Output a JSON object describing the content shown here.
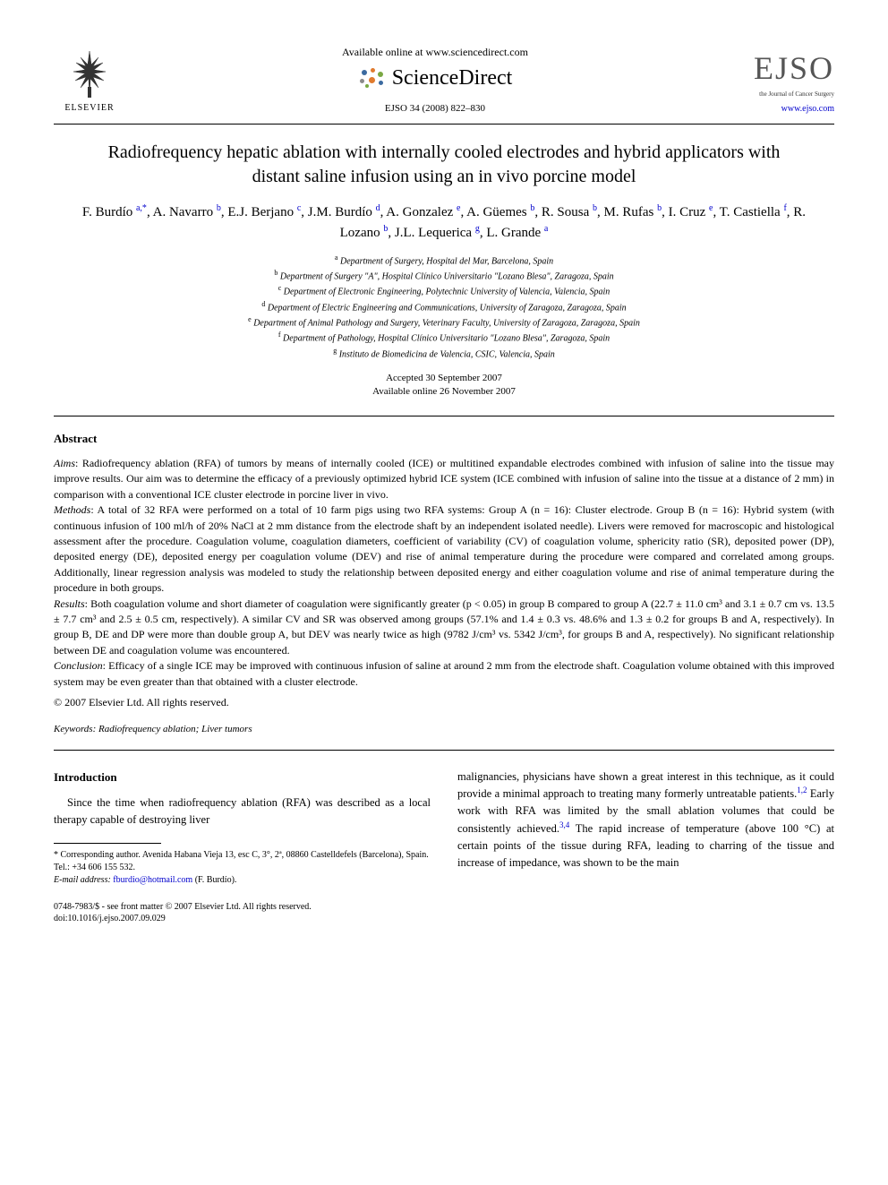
{
  "header": {
    "elsevier_label": "ELSEVIER",
    "available_text": "Available online at www.sciencedirect.com",
    "sciencedirect_label": "ScienceDirect",
    "citation": "EJSO 34 (2008) 822–830",
    "ejso_label": "EJSO",
    "ejso_subtitle": "the Journal of Cancer Surgery",
    "ejso_url": "www.ejso.com",
    "sd_dot_colors": {
      "blue": "#3b6aa0",
      "orange": "#e07b2e",
      "green": "#7aa843",
      "grey": "#8a8a8a"
    }
  },
  "article": {
    "title": "Radiofrequency hepatic ablation with internally cooled electrodes and hybrid applicators with distant saline infusion using an in vivo porcine model",
    "authors_html": "F. Burdío <sup>a,*</sup>, A. Navarro <sup>b</sup>, E.J. Berjano <sup>c</sup>, J.M. Burdío <sup>d</sup>, A. Gonzalez <sup>e</sup>, A. Güemes <sup>b</sup>, R. Sousa <sup>b</sup>, M. Rufas <sup>b</sup>, I. Cruz <sup>e</sup>, T. Castiella <sup>f</sup>, R. Lozano <sup>b</sup>, J.L. Lequerica <sup>g</sup>, L. Grande <sup>a</sup>",
    "affiliations": [
      "Department of Surgery, Hospital del Mar, Barcelona, Spain",
      "Department of Surgery \"A\", Hospital Clínico Universitario \"Lozano Blesa\", Zaragoza, Spain",
      "Department of Electronic Engineering, Polytechnic University of Valencia, Valencia, Spain",
      "Department of Electric Engineering and Communications, University of Zaragoza, Zaragoza, Spain",
      "Department of Animal Pathology and Surgery, Veterinary Faculty, University of Zaragoza, Zaragoza, Spain",
      "Department of Pathology, Hospital Clínico Universitario \"Lozano Blesa\", Zaragoza, Spain",
      "Instituto de Biomedicina de Valencia, CSIC, Valencia, Spain"
    ],
    "affiliation_markers": [
      "a",
      "b",
      "c",
      "d",
      "e",
      "f",
      "g"
    ],
    "accepted": "Accepted 30 September 2007",
    "available_online": "Available online 26 November 2007"
  },
  "abstract": {
    "heading": "Abstract",
    "aims_label": "Aims",
    "aims_text": ": Radiofrequency ablation (RFA) of tumors by means of internally cooled (ICE) or multitined expandable electrodes combined with infusion of saline into the tissue may improve results. Our aim was to determine the efficacy of a previously optimized hybrid ICE system (ICE combined with infusion of saline into the tissue at a distance of 2 mm) in comparison with a conventional ICE cluster electrode in porcine liver in vivo.",
    "methods_label": "Methods",
    "methods_text": ": A total of 32 RFA were performed on a total of 10 farm pigs using two RFA systems: Group A (n = 16): Cluster electrode. Group B (n = 16): Hybrid system (with continuous infusion of 100 ml/h of 20% NaCl at 2 mm distance from the electrode shaft by an independent isolated needle). Livers were removed for macroscopic and histological assessment after the procedure. Coagulation volume, coagulation diameters, coefficient of variability (CV) of coagulation volume, sphericity ratio (SR), deposited power (DP), deposited energy (DE), deposited energy per coagulation volume (DEV) and rise of animal temperature during the procedure were compared and correlated among groups. Additionally, linear regression analysis was modeled to study the relationship between deposited energy and either coagulation volume and rise of animal temperature during the procedure in both groups.",
    "results_label": "Results",
    "results_text": ": Both coagulation volume and short diameter of coagulation were significantly greater (p < 0.05) in group B compared to group A (22.7 ± 11.0 cm³ and 3.1 ± 0.7 cm vs. 13.5 ± 7.7 cm³ and 2.5 ± 0.5 cm, respectively). A similar CV and SR was observed among groups (57.1% and 1.4 ± 0.3 vs. 48.6% and 1.3 ± 0.2 for groups B and A, respectively). In group B, DE and DP were more than double group A, but DEV was nearly twice as high (9782 J/cm³ vs. 5342 J/cm³, for groups B and A, respectively). No significant relationship between DE and coagulation volume was encountered.",
    "conclusion_label": "Conclusion",
    "conclusion_text": ": Efficacy of a single ICE may be improved with continuous infusion of saline at around 2 mm from the electrode shaft. Coagulation volume obtained with this improved system may be even greater than that obtained with a cluster electrode.",
    "copyright": "© 2007 Elsevier Ltd. All rights reserved.",
    "keywords_label": "Keywords:",
    "keywords_text": " Radiofrequency ablation; Liver tumors"
  },
  "body": {
    "intro_heading": "Introduction",
    "intro_col1": "Since the time when radiofrequency ablation (RFA) was described as a local therapy capable of destroying liver",
    "intro_col2_a": "malignancies, physicians have shown a great interest in this technique, as it could provide a minimal approach to treating many formerly untreatable patients.",
    "intro_col2_ref1": "1,2",
    "intro_col2_b": " Early work with RFA was limited by the small ablation volumes that could be consistently achieved.",
    "intro_col2_ref2": "3,4",
    "intro_col2_c": " The rapid increase of temperature (above 100 °C) at certain points of the tissue during RFA, leading to charring of the tissue and increase of impedance, was shown to be the main"
  },
  "footnote": {
    "corresponding": "* Corresponding author. Avenida Habana Vieja 13, esc C, 3°, 2ª, 08860 Castelldefels (Barcelona), Spain. Tel.: +34 606 155 532.",
    "email_label": "E-mail address:",
    "email": "fburdio@hotmail.com",
    "email_author": " (F. Burdío)."
  },
  "footer": {
    "line1": "0748-7983/$ - see front matter © 2007 Elsevier Ltd. All rights reserved.",
    "line2": "doi:10.1016/j.ejso.2007.09.029"
  },
  "colors": {
    "text": "#000000",
    "link": "#0000cc",
    "ejso_grey": "#555555"
  }
}
